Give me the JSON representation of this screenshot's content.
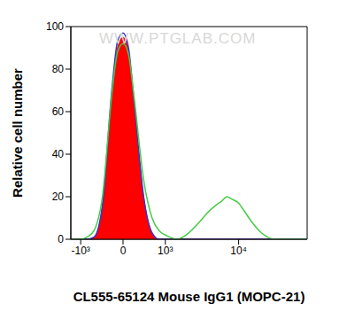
{
  "chart_data": {
    "type": "histogram_overlay",
    "xlabel": "CL555-65124 Mouse IgG1 (MOPC-21)",
    "ylabel": "Relative cell number",
    "annotations": [
      "WWW.PTGLAB.COM"
    ],
    "log": "x",
    "x": [
      -1400,
      -1000,
      -800,
      -600,
      -400,
      -200,
      -100,
      0,
      100,
      200,
      400,
      600,
      800,
      1000,
      1500,
      2000,
      3000,
      4000,
      5000,
      6000,
      7000,
      8000,
      10000,
      12000,
      15000,
      20000,
      30000,
      50000,
      80000
    ],
    "series": [
      {
        "type": "area",
        "color": "#ff0000",
        "values": [
          0,
          0,
          0,
          1,
          15,
          70,
          90,
          95,
          88,
          65,
          20,
          3,
          0,
          0,
          0,
          0,
          0,
          0,
          0,
          0,
          0,
          0,
          0,
          0,
          0,
          0,
          0,
          0,
          0
        ]
      },
      {
        "type": "line",
        "color": "#3333cc",
        "values": [
          0,
          0,
          0,
          1,
          16,
          72,
          93,
          97,
          90,
          66,
          20,
          3,
          0,
          0,
          0,
          0,
          0,
          0,
          0,
          0,
          0,
          0,
          0,
          0,
          0,
          0,
          0,
          0,
          0
        ]
      },
      {
        "type": "line",
        "color": "#44cc44",
        "values": [
          0,
          0,
          1,
          4,
          20,
          70,
          88,
          92,
          87,
          68,
          28,
          10,
          4,
          2,
          0,
          2,
          8,
          13,
          16,
          18,
          20,
          19,
          17,
          13,
          8,
          3,
          0,
          0,
          0
        ]
      }
    ],
    "xlim": [
      -1400,
      80000
    ],
    "xticks": [
      {
        "value": -1000,
        "label": "-10³"
      },
      0,
      {
        "value": 1000,
        "label": "10³"
      },
      {
        "value": 10000,
        "label": "10⁴"
      }
    ],
    "ylim": [
      0,
      100
    ],
    "yticks": [
      0,
      20,
      40,
      60,
      80,
      100
    ]
  }
}
